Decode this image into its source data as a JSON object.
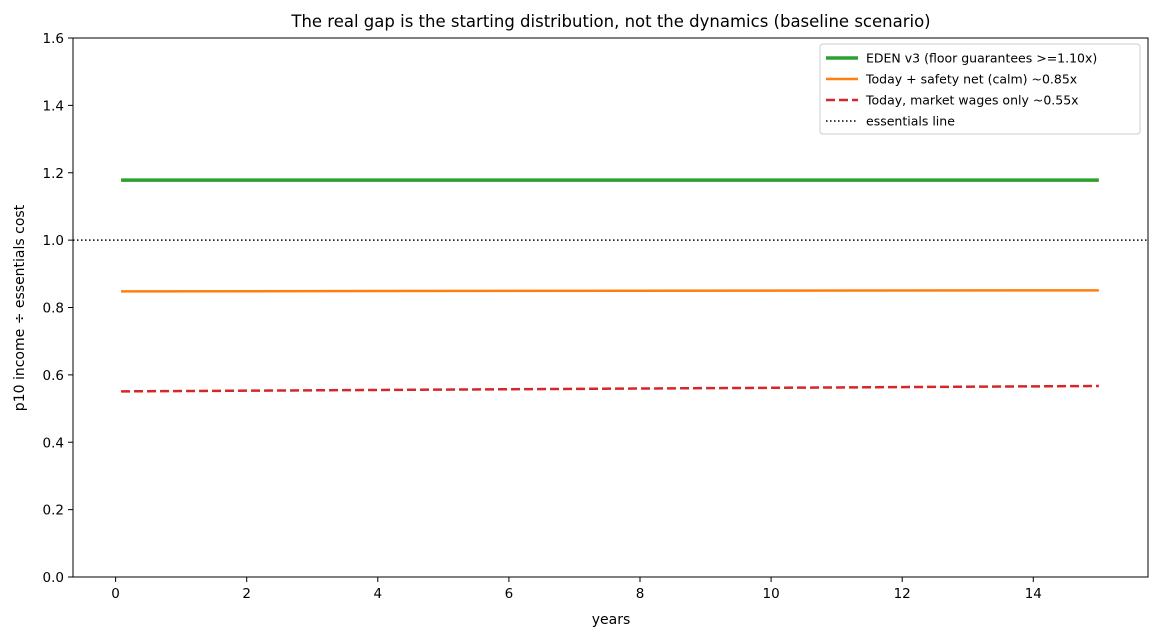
{
  "chart_data": {
    "type": "line",
    "title": "The real gap is the starting distribution, not the dynamics (baseline scenario)",
    "xlabel": "years",
    "ylabel": "p10 income ÷ essentials cost",
    "xlim": [
      -0.65,
      15.75
    ],
    "ylim": [
      0.0,
      1.6
    ],
    "xticks": [
      0,
      2,
      4,
      6,
      8,
      10,
      12,
      14
    ],
    "yticks": [
      0.0,
      0.2,
      0.4,
      0.6,
      0.8,
      1.0,
      1.2,
      1.4,
      1.6
    ],
    "grid": false,
    "legend_position": "top-right",
    "series": [
      {
        "name": "EDEN v3 (floor guarantees >=1.10x)",
        "color": "#2ca02c",
        "style": "solid",
        "x": [
          0.083,
          15.0
        ],
        "y": [
          1.178,
          1.178
        ]
      },
      {
        "name": "Today + safety net (calm) ~0.85x",
        "color": "#ff7f0e",
        "style": "solid",
        "x": [
          0.083,
          15.0
        ],
        "y": [
          0.848,
          0.851
        ]
      },
      {
        "name": "Today, market wages only ~0.55x",
        "color": "#d62728",
        "style": "dashed",
        "x": [
          0.083,
          15.0
        ],
        "y": [
          0.551,
          0.567
        ]
      }
    ],
    "reference_lines": [
      {
        "name": "essentials line",
        "y": 1.0,
        "color": "#000000",
        "style": "dotted"
      }
    ]
  }
}
